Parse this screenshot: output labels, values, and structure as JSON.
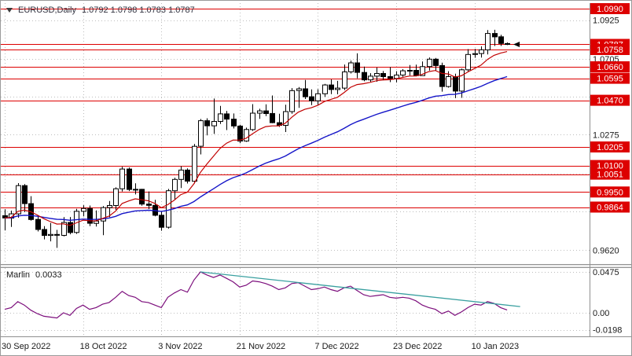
{
  "window": {
    "symbol": "EURUSD,Daily",
    "ohlc": "1.0792 1.0798 1.0783 1.0787"
  },
  "colors": {
    "level": "#dd0000",
    "tag_text": "#ffffff",
    "ma_fast": "#c00000",
    "ma_slow": "#1515c8",
    "indicator": "#7c0e7c",
    "trend": "#3aa0a0",
    "grid": "#bdbdbd",
    "candle": "#000000",
    "axis_text": "#1a1a1a",
    "frame": "#8f8f8f"
  },
  "chart_data": {
    "type": "candlestick",
    "title": "EURUSD,Daily",
    "main": {
      "price_range": [
        0.9541,
        1.1021
      ],
      "bar_start_x": 6,
      "bar_spacing": 8.3,
      "ma_fast_period": 10,
      "ma_slow_period": 34,
      "grid_levels": [
        1.0925,
        1.0705,
        1.049,
        1.0275,
        1.0055,
        0.984,
        0.962
      ],
      "axis_labels": [
        {
          "label": "1.0925",
          "value": 1.0925
        },
        {
          "label": "1.0705",
          "value": 1.0705
        },
        {
          "label": "1.0275",
          "value": 1.0275
        },
        {
          "label": "0.9620",
          "value": 0.962
        }
      ],
      "red_levels": [
        {
          "label": "1.0990",
          "value": 1.099
        },
        {
          "label": "1.0758",
          "value": 1.0758
        },
        {
          "label": "1.0660",
          "value": 1.066
        },
        {
          "label": "1.0595",
          "value": 1.0595
        },
        {
          "label": "1.0470",
          "value": 1.047
        },
        {
          "label": "1.0205",
          "value": 1.0205
        },
        {
          "label": "1.0100",
          "value": 1.01
        },
        {
          "label": "1.0051",
          "value": 1.0051
        },
        {
          "label": "0.9950",
          "value": 0.995
        },
        {
          "label": "0.9864",
          "value": 0.9864
        }
      ],
      "current_price": {
        "label": "1.0787",
        "value": 1.0787
      },
      "x_ticks": [
        {
          "label": "30 Sep 2022",
          "index": 0
        },
        {
          "label": "18 Oct 2022",
          "index": 12
        },
        {
          "label": "3 Nov 2022",
          "index": 24
        },
        {
          "label": "21 Nov 2022",
          "index": 36
        },
        {
          "label": "7 Dec 2022",
          "index": 48
        },
        {
          "label": "23 Dec 2022",
          "index": 60
        },
        {
          "label": "10 Jan 2023",
          "index": 72
        }
      ],
      "candles": [
        [
          0.9815,
          0.9852,
          0.9732,
          0.9802
        ],
        [
          0.9802,
          0.9844,
          0.9752,
          0.9826
        ],
        [
          0.9826,
          1.0,
          0.9804,
          0.9986
        ],
        [
          0.9986,
          0.9995,
          0.9835,
          0.9884
        ],
        [
          0.9884,
          0.9926,
          0.9787,
          0.9794
        ],
        [
          0.9794,
          0.9816,
          0.9726,
          0.9737
        ],
        [
          0.9737,
          0.9756,
          0.9681,
          0.9703
        ],
        [
          0.9703,
          0.9774,
          0.967,
          0.9709
        ],
        [
          0.9709,
          0.9735,
          0.9633,
          0.9704
        ],
        [
          0.9704,
          0.9807,
          0.9698,
          0.9777
        ],
        [
          0.9777,
          0.9808,
          0.971,
          0.972
        ],
        [
          0.972,
          0.9854,
          0.9712,
          0.984
        ],
        [
          0.984,
          0.9875,
          0.9812,
          0.9856
        ],
        [
          0.9856,
          0.9873,
          0.9756,
          0.9772
        ],
        [
          0.9772,
          0.9845,
          0.9754,
          0.9785
        ],
        [
          0.9785,
          0.987,
          0.9705,
          0.9861
        ],
        [
          0.9861,
          0.9899,
          0.9807,
          0.9873
        ],
        [
          0.9873,
          0.9976,
          0.9848,
          0.9968
        ],
        [
          0.9968,
          1.0093,
          0.9953,
          1.008
        ],
        [
          1.008,
          1.0089,
          0.9955,
          0.9964
        ],
        [
          0.9964,
          0.9999,
          0.9936,
          0.9965
        ],
        [
          0.9965,
          0.9967,
          0.9872,
          0.9881
        ],
        [
          0.9881,
          0.9953,
          0.9853,
          0.9874
        ],
        [
          0.9874,
          0.9905,
          0.9812,
          0.9818
        ],
        [
          0.9818,
          0.984,
          0.973,
          0.975
        ],
        [
          0.975,
          0.9967,
          0.9742,
          0.9957
        ],
        [
          0.9957,
          1.0031,
          0.9905,
          1.0021
        ],
        [
          1.0021,
          1.0096,
          0.9972,
          1.0074
        ],
        [
          1.0074,
          1.0084,
          0.9998,
          1.0011
        ],
        [
          1.0011,
          1.0222,
          0.9998,
          1.0209
        ],
        [
          1.0209,
          1.0364,
          1.0163,
          1.0354
        ],
        [
          1.0354,
          1.0368,
          1.0271,
          1.0325
        ],
        [
          1.0325,
          1.048,
          1.0279,
          1.035
        ],
        [
          1.035,
          1.0438,
          1.0336,
          1.0393
        ],
        [
          1.0393,
          1.041,
          1.0301,
          1.0363
        ],
        [
          1.0363,
          1.0395,
          1.031,
          1.0324
        ],
        [
          1.0324,
          1.0331,
          1.0226,
          1.0239
        ],
        [
          1.0239,
          1.0315,
          1.0234,
          1.0304
        ],
        [
          1.0304,
          1.0448,
          1.0296,
          1.0397
        ],
        [
          1.0397,
          1.0422,
          1.0365,
          1.041
        ],
        [
          1.041,
          1.0447,
          1.038,
          1.0395
        ],
        [
          1.0395,
          1.0497,
          1.034,
          1.0343
        ],
        [
          1.0343,
          1.0394,
          1.0319,
          1.0328
        ],
        [
          1.0328,
          1.0445,
          1.029,
          1.0406
        ],
        [
          1.0406,
          1.0539,
          1.0394,
          1.0525
        ],
        [
          1.0525,
          1.0545,
          1.0427,
          1.0535
        ],
        [
          1.0535,
          1.0585,
          1.0477,
          1.049
        ],
        [
          1.049,
          1.0532,
          1.0443,
          1.0467
        ],
        [
          1.0467,
          1.0533,
          1.0444,
          1.0507
        ],
        [
          1.0507,
          1.0563,
          1.0489,
          1.0557
        ],
        [
          1.0557,
          1.0588,
          1.0505,
          1.0531
        ],
        [
          1.0531,
          1.058,
          1.0504,
          1.0539
        ],
        [
          1.0539,
          1.0673,
          1.0528,
          1.0631
        ],
        [
          1.0631,
          1.0695,
          1.0622,
          1.0682
        ],
        [
          1.0682,
          1.0736,
          1.0595,
          1.0628
        ],
        [
          1.0628,
          1.0661,
          1.0578,
          1.0586
        ],
        [
          1.0586,
          1.0624,
          1.0574,
          1.0607
        ],
        [
          1.0607,
          1.0656,
          1.0575,
          1.0622
        ],
        [
          1.0622,
          1.0636,
          1.0584,
          1.0604
        ],
        [
          1.0604,
          1.0659,
          1.0573,
          1.0594
        ],
        [
          1.0594,
          1.0635,
          1.0571,
          1.0613
        ],
        [
          1.0613,
          1.0647,
          1.0603,
          1.0637
        ],
        [
          1.0637,
          1.067,
          1.0611,
          1.064
        ],
        [
          1.064,
          1.0672,
          1.0605,
          1.061
        ],
        [
          1.061,
          1.069,
          1.0609,
          1.0661
        ],
        [
          1.0661,
          1.0713,
          1.0639,
          1.0703
        ],
        [
          1.0703,
          1.071,
          1.0638,
          1.0667
        ],
        [
          1.0667,
          1.0683,
          1.0519,
          1.0548
        ],
        [
          1.0548,
          1.0635,
          1.0542,
          1.0604
        ],
        [
          1.0604,
          1.0621,
          1.0482,
          1.0522
        ],
        [
          1.0522,
          1.065,
          1.0484,
          1.0643
        ],
        [
          1.0643,
          1.076,
          1.0634,
          1.073
        ],
        [
          1.073,
          1.0761,
          1.0711,
          1.0735
        ],
        [
          1.0735,
          1.0776,
          1.0712,
          1.0756
        ],
        [
          1.0756,
          1.0868,
          1.073,
          1.0849
        ],
        [
          1.0849,
          1.087,
          1.0778,
          1.083
        ],
        [
          1.083,
          1.0842,
          1.0778,
          1.0792
        ],
        [
          1.0792,
          1.0798,
          1.0783,
          1.0787
        ]
      ]
    },
    "sub": {
      "name": "Marlin",
      "value_text": "0.0033",
      "range": [
        -0.0274,
        0.0521
      ],
      "axis_labels": [
        {
          "label": "0.0475",
          "value": 0.0475
        },
        {
          "label": "0.00",
          "value": 0.0
        },
        {
          "label": "-0.0198",
          "value": -0.0198
        }
      ],
      "values": [
        0.004,
        0.006,
        0.013,
        0.009,
        0.003,
        -0.001,
        -0.004,
        -0.005,
        -0.006,
        0.0,
        -0.003,
        0.005,
        0.009,
        0.004,
        0.006,
        0.01,
        0.012,
        0.018,
        0.025,
        0.02,
        0.018,
        0.013,
        0.012,
        0.009,
        0.006,
        0.018,
        0.023,
        0.027,
        0.024,
        0.038,
        0.0475,
        0.044,
        0.041,
        0.044,
        0.04,
        0.036,
        0.03,
        0.032,
        0.037,
        0.036,
        0.034,
        0.031,
        0.027,
        0.029,
        0.034,
        0.035,
        0.031,
        0.027,
        0.028,
        0.03,
        0.027,
        0.025,
        0.029,
        0.031,
        0.026,
        0.021,
        0.019,
        0.02,
        0.021,
        0.018,
        0.017,
        0.018,
        0.017,
        0.014,
        0.009,
        0.006,
        0.004,
        -0.001,
        0.002,
        -0.003,
        0.001,
        0.006,
        0.01,
        0.009,
        0.013,
        0.011,
        0.006,
        0.0033
      ],
      "trendline": {
        "from_index": 30,
        "from_value": 0.0475,
        "to_index": 79,
        "to_value": 0.0072
      }
    }
  }
}
